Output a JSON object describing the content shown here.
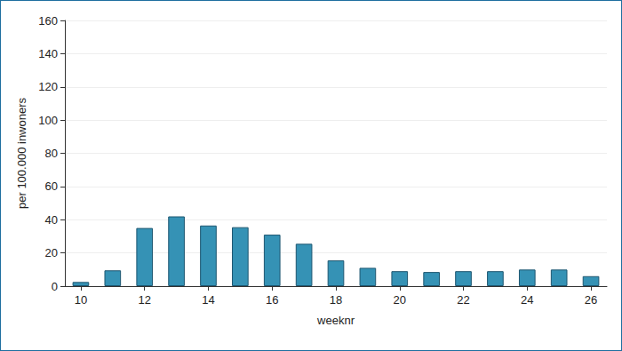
{
  "chart_data": {
    "type": "bar",
    "x_label": "weeknr",
    "y_label": "per 100.000 inwoners",
    "categories": [
      "10",
      null,
      "12",
      null,
      "14",
      null,
      "16",
      null,
      "18",
      null,
      "20",
      null,
      "22",
      null,
      "24",
      null,
      "26"
    ],
    "values": [
      2.5,
      9.5,
      35,
      42,
      36.5,
      35.5,
      31,
      25.5,
      15.5,
      11,
      9,
      8.5,
      9,
      9,
      10,
      10,
      6
    ],
    "color": "#3592b5",
    "ylim": [
      0,
      160
    ],
    "yticks": [
      0,
      20,
      40,
      60,
      80,
      100,
      120,
      140,
      160
    ],
    "grid": true
  }
}
